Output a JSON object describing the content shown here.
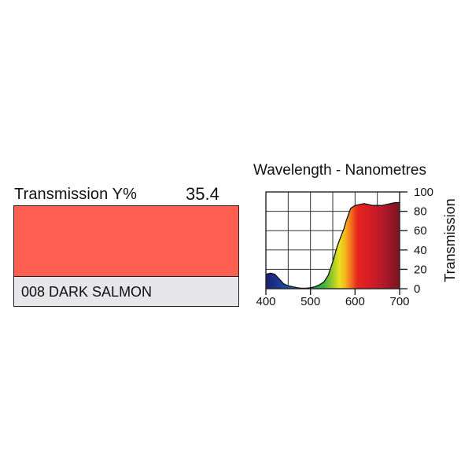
{
  "filter": {
    "transmission_label": "Transmission Y%",
    "transmission_value": "35.4",
    "swatch_color": "#ff5f50",
    "name": "008 DARK SALMON"
  },
  "chart_data": {
    "type": "area",
    "title": "Wavelength - Nanometres",
    "xlabel": "",
    "ylabel": "Transmission",
    "xlim": [
      400,
      700
    ],
    "ylim": [
      0,
      100
    ],
    "x_ticks": [
      400,
      500,
      600,
      700
    ],
    "y_ticks": [
      0,
      20,
      40,
      60,
      80,
      100
    ],
    "x_tick_labels": [
      "400",
      "500",
      "600",
      "700"
    ],
    "y_tick_labels": [
      "0",
      "20",
      "40",
      "60",
      "80",
      "100"
    ],
    "grid": true,
    "series": [
      {
        "x": [
          400,
          410,
          420,
          430,
          440,
          450,
          460,
          470,
          480,
          490,
          500,
          510,
          520,
          530,
          540,
          550,
          560,
          570,
          575,
          580,
          590,
          600,
          610,
          620,
          630,
          640,
          650,
          660,
          670,
          680,
          690,
          700
        ],
        "y": [
          15,
          16,
          15,
          10,
          5,
          3,
          2,
          1,
          0.5,
          0.5,
          1,
          2,
          4,
          7,
          14,
          28,
          44,
          56,
          62,
          70,
          83,
          86,
          87,
          88,
          87,
          86,
          86,
          86,
          87,
          88,
          89,
          89
        ]
      }
    ]
  }
}
